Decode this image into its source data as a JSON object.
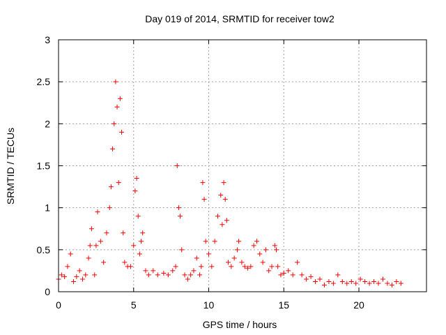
{
  "colors": {
    "series": "#ff0000",
    "grid": "#a0a0a0",
    "axis": "#000000"
  },
  "chart_data": {
    "type": "scatter",
    "title": "Day 019 of 2014, SRMTID for receiver tow2",
    "xlabel": "GPS time / hours",
    "ylabel": "SRMTID / TECUs",
    "xlim": [
      0,
      24.5
    ],
    "ylim": [
      0,
      3
    ],
    "xticks": [
      0,
      5,
      10,
      15,
      20
    ],
    "xtick_labels": [
      "0",
      "5",
      "10",
      "15",
      "20"
    ],
    "yticks": [
      0,
      0.5,
      1,
      1.5,
      2,
      2.5,
      3
    ],
    "ytick_labels": [
      "0",
      "0.5",
      "1",
      "1.5",
      "2",
      "2.5",
      "3"
    ],
    "grid": true,
    "marker": "+",
    "series": [
      {
        "name": "tow2",
        "x": [
          0.0,
          0.2,
          0.4,
          0.6,
          0.8,
          1.0,
          1.2,
          1.4,
          1.6,
          1.8,
          2.0,
          2.1,
          2.2,
          2.4,
          2.5,
          2.6,
          2.8,
          3.0,
          3.2,
          3.4,
          3.5,
          3.6,
          3.7,
          3.8,
          3.9,
          4.0,
          4.1,
          4.2,
          4.3,
          4.4,
          4.6,
          4.8,
          5.0,
          5.1,
          5.2,
          5.3,
          5.4,
          5.5,
          5.6,
          5.8,
          6.0,
          6.3,
          6.6,
          7.0,
          7.3,
          7.6,
          7.8,
          7.9,
          8.0,
          8.1,
          8.2,
          8.4,
          8.6,
          8.8,
          9.0,
          9.2,
          9.4,
          9.5,
          9.6,
          9.7,
          9.8,
          10.0,
          10.2,
          10.4,
          10.6,
          10.8,
          10.9,
          11.0,
          11.1,
          11.2,
          11.3,
          11.5,
          11.7,
          11.9,
          12.0,
          12.2,
          12.4,
          12.6,
          12.8,
          13.0,
          13.2,
          13.4,
          13.6,
          13.8,
          14.0,
          14.2,
          14.4,
          14.5,
          14.6,
          14.8,
          15.0,
          15.3,
          15.6,
          15.9,
          16.2,
          16.5,
          16.8,
          17.1,
          17.4,
          17.7,
          18.0,
          18.3,
          18.6,
          18.9,
          19.2,
          19.5,
          19.8,
          20.1,
          20.4,
          20.7,
          21.0,
          21.3,
          21.6,
          21.9,
          22.2,
          22.5,
          22.8
        ],
        "y": [
          0.15,
          0.2,
          0.18,
          0.3,
          0.45,
          0.12,
          0.18,
          0.25,
          0.15,
          0.2,
          0.4,
          0.55,
          0.75,
          0.2,
          0.55,
          0.95,
          0.6,
          0.35,
          0.7,
          1.0,
          1.25,
          1.7,
          2.0,
          2.5,
          2.2,
          1.3,
          2.3,
          1.9,
          0.7,
          0.35,
          0.3,
          0.3,
          0.55,
          1.2,
          1.35,
          0.9,
          0.45,
          0.6,
          0.7,
          0.25,
          0.2,
          0.25,
          0.2,
          0.22,
          0.2,
          0.25,
          0.3,
          1.5,
          1.0,
          0.9,
          0.5,
          0.2,
          0.15,
          0.2,
          0.25,
          0.4,
          0.2,
          0.3,
          1.3,
          1.1,
          0.6,
          0.45,
          0.3,
          0.6,
          0.9,
          1.15,
          0.8,
          1.3,
          1.1,
          0.85,
          0.35,
          0.3,
          0.4,
          0.5,
          0.6,
          0.35,
          0.3,
          0.28,
          0.3,
          0.55,
          0.6,
          0.45,
          0.35,
          0.5,
          0.25,
          0.3,
          0.55,
          0.5,
          0.3,
          0.2,
          0.22,
          0.25,
          0.2,
          0.35,
          0.2,
          0.15,
          0.18,
          0.12,
          0.15,
          0.08,
          0.12,
          0.1,
          0.2,
          0.12,
          0.1,
          0.12,
          0.1,
          0.15,
          0.12,
          0.1,
          0.12,
          0.1,
          0.15,
          0.1,
          0.08,
          0.12,
          0.1
        ]
      }
    ]
  }
}
